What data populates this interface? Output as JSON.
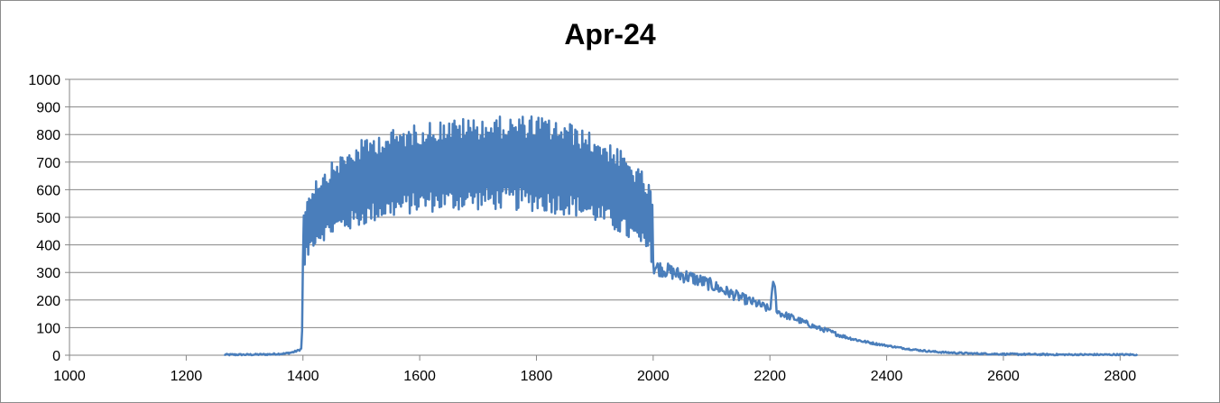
{
  "chart_data": {
    "type": "line",
    "title": "Apr-24",
    "xlabel": "",
    "ylabel": "",
    "xlim": [
      1000,
      2900
    ],
    "ylim": [
      0,
      1000
    ],
    "x_ticks": [
      1000,
      1200,
      1400,
      1600,
      1800,
      2000,
      2200,
      2400,
      2600,
      2800
    ],
    "y_ticks": [
      0,
      100,
      200,
      300,
      400,
      500,
      600,
      700,
      800,
      900,
      1000
    ],
    "grid": "horizontal",
    "legend": "none",
    "series": [
      {
        "color": "#4a7ebb",
        "points": [
          [
            1265,
            2
          ],
          [
            1300,
            2
          ],
          [
            1340,
            3
          ],
          [
            1370,
            6
          ],
          [
            1385,
            12
          ],
          [
            1395,
            20
          ],
          [
            1398,
            25
          ],
          [
            1400,
            290
          ],
          [
            1410,
            360
          ],
          [
            1420,
            400
          ],
          [
            1440,
            420
          ],
          [
            1460,
            440
          ],
          [
            1480,
            450
          ],
          [
            1500,
            465
          ],
          [
            1520,
            480
          ],
          [
            1540,
            490
          ],
          [
            1560,
            500
          ],
          [
            1580,
            510
          ],
          [
            1600,
            515
          ],
          [
            1620,
            518
          ],
          [
            1640,
            520
          ],
          [
            1660,
            522
          ],
          [
            1680,
            525
          ],
          [
            1700,
            525
          ],
          [
            1720,
            525
          ],
          [
            1740,
            526
          ],
          [
            1760,
            525
          ],
          [
            1780,
            522
          ],
          [
            1800,
            520
          ],
          [
            1820,
            515
          ],
          [
            1840,
            510
          ],
          [
            1860,
            505
          ],
          [
            1880,
            495
          ],
          [
            1900,
            480
          ],
          [
            1920,
            460
          ],
          [
            1940,
            440
          ],
          [
            1960,
            410
          ],
          [
            1980,
            380
          ],
          [
            1995,
            350
          ],
          [
            2000,
            320
          ],
          [
            2020,
            310
          ],
          [
            2040,
            295
          ],
          [
            2060,
            285
          ],
          [
            2080,
            270
          ],
          [
            2100,
            255
          ],
          [
            2120,
            235
          ],
          [
            2140,
            218
          ],
          [
            2160,
            200
          ],
          [
            2180,
            185
          ],
          [
            2200,
            165
          ],
          [
            2207,
            270
          ],
          [
            2212,
            160
          ],
          [
            2220,
            150
          ],
          [
            2240,
            135
          ],
          [
            2260,
            118
          ],
          [
            2280,
            100
          ],
          [
            2300,
            88
          ],
          [
            2320,
            72
          ],
          [
            2340,
            60
          ],
          [
            2360,
            50
          ],
          [
            2380,
            42
          ],
          [
            2400,
            35
          ],
          [
            2420,
            28
          ],
          [
            2440,
            22
          ],
          [
            2460,
            17
          ],
          [
            2480,
            13
          ],
          [
            2500,
            10
          ],
          [
            2550,
            6
          ],
          [
            2600,
            4
          ],
          [
            2650,
            3
          ],
          [
            2700,
            2
          ],
          [
            2750,
            2
          ],
          [
            2800,
            2
          ],
          [
            2830,
            2
          ]
        ],
        "upper_points": [
          [
            1400,
            540
          ],
          [
            1410,
            600
          ],
          [
            1420,
            640
          ],
          [
            1440,
            680
          ],
          [
            1460,
            720
          ],
          [
            1480,
            750
          ],
          [
            1500,
            780
          ],
          [
            1520,
            800
          ],
          [
            1540,
            815
          ],
          [
            1560,
            820
          ],
          [
            1580,
            830
          ],
          [
            1600,
            840
          ],
          [
            1620,
            850
          ],
          [
            1640,
            855
          ],
          [
            1660,
            858
          ],
          [
            1680,
            860
          ],
          [
            1700,
            862
          ],
          [
            1720,
            865
          ],
          [
            1740,
            865
          ],
          [
            1760,
            865
          ],
          [
            1780,
            870
          ],
          [
            1800,
            870
          ],
          [
            1820,
            860
          ],
          [
            1840,
            850
          ],
          [
            1860,
            840
          ],
          [
            1880,
            820
          ],
          [
            1900,
            800
          ],
          [
            1920,
            780
          ],
          [
            1940,
            750
          ],
          [
            1960,
            710
          ],
          [
            1980,
            670
          ],
          [
            1995,
            610
          ],
          [
            2000,
            550
          ]
        ]
      }
    ]
  }
}
